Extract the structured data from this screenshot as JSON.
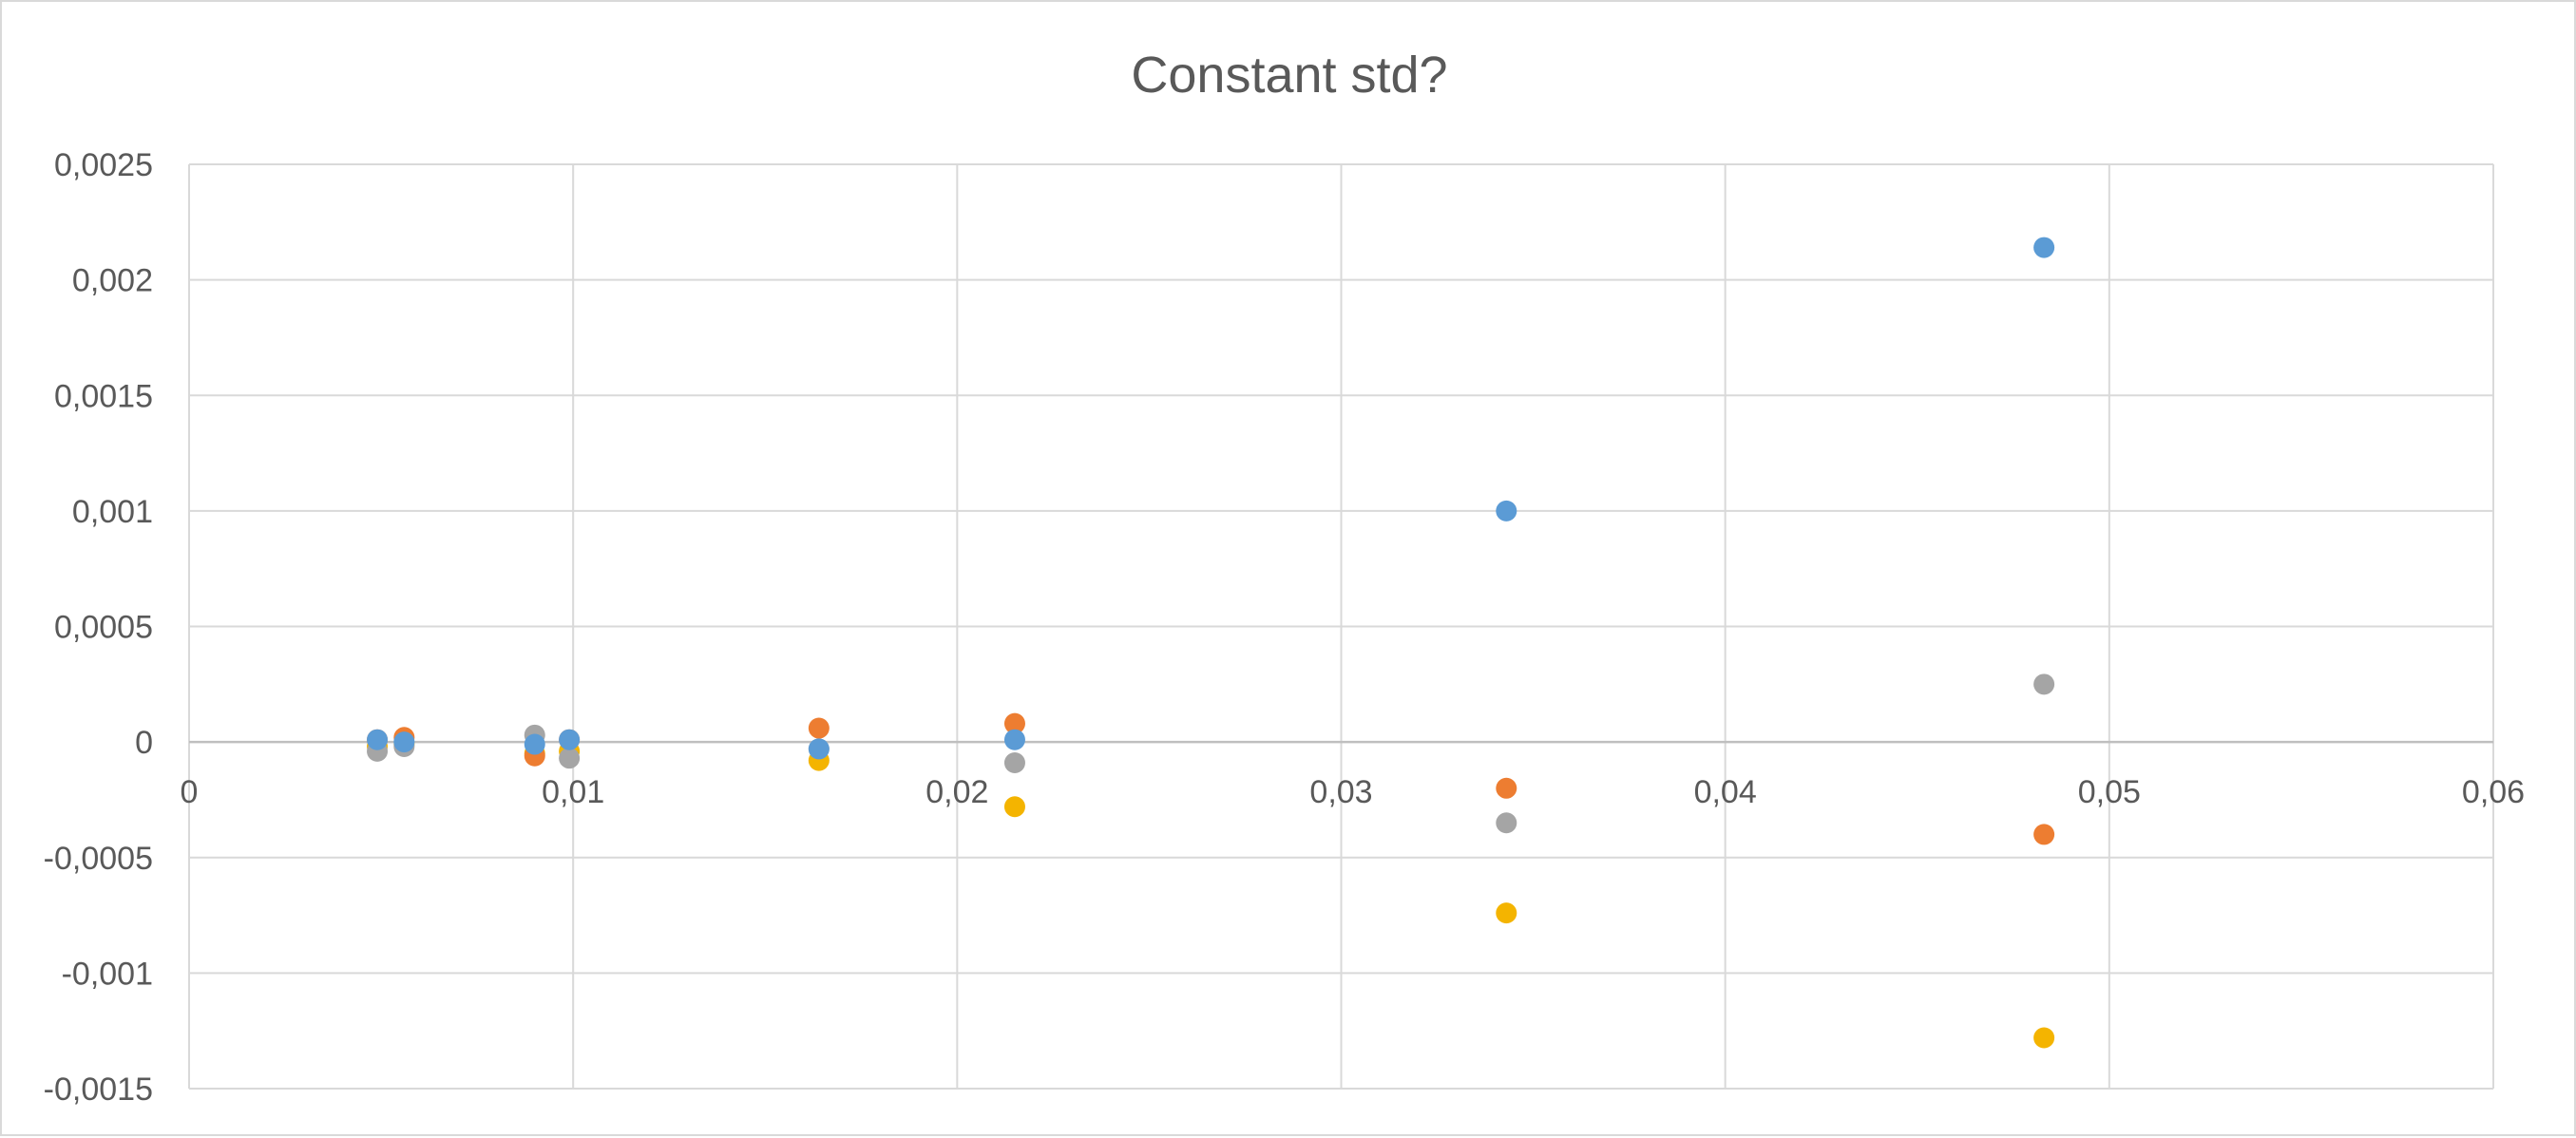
{
  "chart_data": {
    "type": "scatter",
    "title": "Constant std?",
    "xlabel": "",
    "ylabel": "",
    "xlim": [
      0,
      0.06
    ],
    "ylim": [
      -0.0015,
      0.0025
    ],
    "x_ticks": [
      "0",
      "0,01",
      "0,02",
      "0,03",
      "0,04",
      "0,05",
      "0,06"
    ],
    "y_ticks": [
      "0,0025",
      "0,002",
      "0,0015",
      "0,001",
      "0,0005",
      "0",
      "-0,0005",
      "-0,001",
      "-0,0015"
    ],
    "grid": "on",
    "legend": "none",
    "series": [
      {
        "color": "#F4B400",
        "points": [
          [
            0.0049,
            -2e-05
          ],
          [
            0.0056,
            -1e-05
          ],
          [
            0.009,
            -5e-05
          ],
          [
            0.0099,
            -4e-05
          ],
          [
            0.0164,
            -8e-05
          ],
          [
            0.0215,
            -0.00028
          ],
          [
            0.0343,
            -0.00074
          ],
          [
            0.0483,
            -0.00128
          ]
        ]
      },
      {
        "color": "#ED7D31",
        "points": [
          [
            0.0049,
            1e-05
          ],
          [
            0.0056,
            2e-05
          ],
          [
            0.009,
            -6e-05
          ],
          [
            0.0099,
            1e-05
          ],
          [
            0.0164,
            6e-05
          ],
          [
            0.0215,
            8e-05
          ],
          [
            0.0343,
            -0.0002
          ],
          [
            0.0483,
            -0.0004
          ]
        ]
      },
      {
        "color": "#A5A5A5",
        "points": [
          [
            0.0049,
            -4e-05
          ],
          [
            0.0056,
            -2e-05
          ],
          [
            0.009,
            3e-05
          ],
          [
            0.0099,
            -7e-05
          ],
          [
            0.0164,
            -3e-05
          ],
          [
            0.0215,
            -9e-05
          ],
          [
            0.0343,
            -0.00035
          ],
          [
            0.0483,
            0.00025
          ]
        ]
      },
      {
        "color": "#5B9BD5",
        "points": [
          [
            0.0049,
            1e-05
          ],
          [
            0.0056,
            0.0
          ],
          [
            0.009,
            -1e-05
          ],
          [
            0.0099,
            1e-05
          ],
          [
            0.0164,
            -3e-05
          ],
          [
            0.0215,
            1e-05
          ],
          [
            0.0343,
            0.001
          ],
          [
            0.0483,
            0.00214
          ]
        ]
      }
    ]
  }
}
